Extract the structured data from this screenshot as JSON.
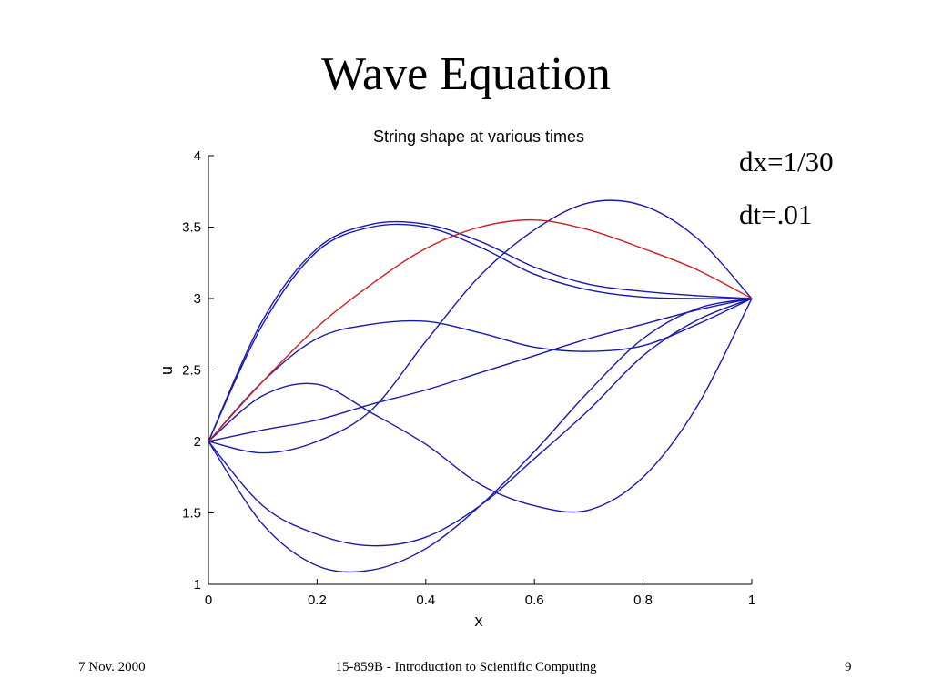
{
  "slide": {
    "title": "Wave Equation",
    "params": {
      "dx": "dx=1/30",
      "dt": "dt=.01"
    },
    "footer": {
      "date": "7 Nov. 2000",
      "course": "15-859B - Introduction to Scientific Computing",
      "page": "9"
    }
  },
  "chart_data": {
    "type": "line",
    "title": "String shape at various times",
    "xlabel": "x",
    "ylabel": "u",
    "xlim": [
      0,
      1
    ],
    "ylim": [
      1,
      4
    ],
    "xticks": [
      0,
      0.2,
      0.4,
      0.6,
      0.8,
      1
    ],
    "xtick_labels": [
      "0",
      "0.2",
      "0.4",
      "0.6",
      "0.8",
      "1"
    ],
    "yticks": [
      1,
      1.5,
      2,
      2.5,
      3,
      3.5,
      4
    ],
    "ytick_labels": [
      "1",
      "1.5",
      "2",
      "2.5",
      "3",
      "3.5",
      "4"
    ],
    "grid": false,
    "x": [
      0,
      0.1,
      0.2,
      0.3,
      0.4,
      0.5,
      0.6,
      0.7,
      0.8,
      0.9,
      1
    ],
    "colors": {
      "initial": "#cc2020",
      "other": "#1a1aaa"
    },
    "series": [
      {
        "color": "#cc2020",
        "values": [
          2.0,
          2.42,
          2.8,
          3.1,
          3.35,
          3.5,
          3.55,
          3.48,
          3.35,
          3.2,
          3.0
        ]
      },
      {
        "color": "#1a1aaa",
        "values": [
          2.0,
          2.85,
          3.35,
          3.52,
          3.52,
          3.4,
          3.22,
          3.1,
          3.05,
          3.02,
          3.0
        ]
      },
      {
        "color": "#1a1aaa",
        "values": [
          2.0,
          2.82,
          3.33,
          3.5,
          3.5,
          3.36,
          3.17,
          3.06,
          3.01,
          3.0,
          3.0
        ]
      },
      {
        "color": "#1a1aaa",
        "values": [
          2.0,
          2.42,
          2.72,
          2.82,
          2.84,
          2.76,
          2.66,
          2.63,
          2.67,
          2.82,
          3.0
        ]
      },
      {
        "color": "#1a1aaa",
        "values": [
          2.0,
          2.08,
          2.15,
          2.26,
          2.36,
          2.48,
          2.6,
          2.72,
          2.82,
          2.92,
          3.0
        ]
      },
      {
        "color": "#1a1aaa",
        "values": [
          2.0,
          1.92,
          2.0,
          2.22,
          2.7,
          3.16,
          3.48,
          3.67,
          3.65,
          3.42,
          3.0
        ]
      },
      {
        "color": "#1a1aaa",
        "values": [
          2.0,
          2.32,
          2.4,
          2.2,
          1.98,
          1.7,
          1.55,
          1.52,
          1.75,
          2.25,
          3.0
        ]
      },
      {
        "color": "#1a1aaa",
        "values": [
          2.0,
          1.55,
          1.35,
          1.27,
          1.33,
          1.55,
          1.88,
          2.22,
          2.6,
          2.85,
          3.0
        ]
      },
      {
        "color": "#1a1aaa",
        "values": [
          2.0,
          1.42,
          1.13,
          1.1,
          1.25,
          1.55,
          1.93,
          2.35,
          2.72,
          2.93,
          3.0
        ]
      }
    ]
  }
}
